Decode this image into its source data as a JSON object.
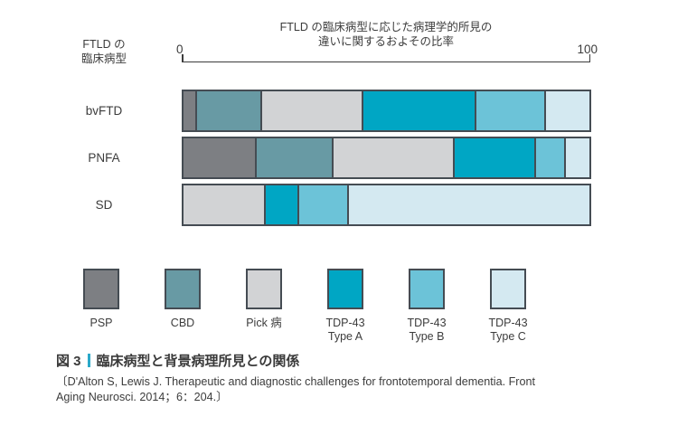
{
  "header": {
    "row_axis_label_lines": [
      "FTLD の",
      "臨床病型"
    ]
  },
  "chart_data": {
    "type": "bar",
    "stacked": true,
    "orientation": "horizontal",
    "title_lines": [
      "FTLD の臨床病型に応じた病理学的所見の",
      "違いに関するおよその比率"
    ],
    "axis": {
      "range": [
        0,
        100
      ],
      "min_label": "0",
      "max_label": "100"
    },
    "categories": [
      "bvFTD",
      "PNFA",
      "SD"
    ],
    "series": [
      {
        "name": "PSP",
        "color": "#7d7f83",
        "values": [
          3,
          18,
          0
        ]
      },
      {
        "name": "CBD",
        "color": "#689aa4",
        "values": [
          16,
          19,
          0
        ]
      },
      {
        "name": "Pick 病",
        "color": "#d2d3d5",
        "values": [
          25,
          30,
          20
        ]
      },
      {
        "name": "TDP-43 Type A",
        "color": "#00a6c4",
        "values": [
          28,
          20,
          8
        ]
      },
      {
        "name": "TDP-43 Type B",
        "color": "#6cc3d8",
        "values": [
          17,
          7,
          12
        ]
      },
      {
        "name": "TDP-43 Type C",
        "color": "#d4e9f1",
        "values": [
          11,
          6,
          60
        ]
      }
    ],
    "legend": [
      {
        "label_lines": [
          "PSP"
        ],
        "color": "#7d7f83"
      },
      {
        "label_lines": [
          "CBD"
        ],
        "color": "#689aa4"
      },
      {
        "label_lines": [
          "Pick 病"
        ],
        "color": "#d2d3d5"
      },
      {
        "label_lines": [
          "TDP-43",
          "Type A"
        ],
        "color": "#00a6c4"
      },
      {
        "label_lines": [
          "TDP-43",
          "Type B"
        ],
        "color": "#6cc3d8"
      },
      {
        "label_lines": [
          "TDP-43",
          "Type C"
        ],
        "color": "#d4e9f1"
      }
    ],
    "bar_border_color": "#454c53",
    "legend_position": "bottom",
    "grid": false
  },
  "caption": {
    "figure_label": "図 3",
    "title": "臨床病型と背景病理所見との関係",
    "accent_color": "#2ba9c9",
    "citation_lines": [
      "〔D'Alton S, Lewis J. Therapeutic and diagnostic challenges for frontotemporal dementia. Front",
      "Aging Neurosci. 2014；6：204.〕"
    ]
  }
}
